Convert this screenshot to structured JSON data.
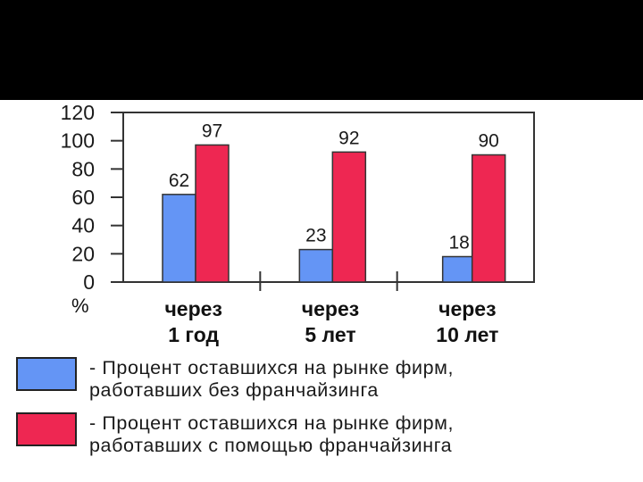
{
  "chart_data": {
    "type": "bar",
    "categories": [
      [
        "через",
        "1 год"
      ],
      [
        "через",
        "5 лет"
      ],
      [
        "через",
        "10 лет"
      ]
    ],
    "series": [
      {
        "color": "#6495f5",
        "values": [
          62,
          23,
          18
        ]
      },
      {
        "color": "#ee2752",
        "values": [
          97,
          92,
          90
        ]
      }
    ],
    "ylim": [
      0,
      120
    ],
    "yticks": [
      "120",
      "100",
      "80",
      "60",
      "40",
      "20",
      "0"
    ],
    "unit": "%",
    "grid": false,
    "data_labels": true
  },
  "legend": [
    {
      "color": "#6495f5",
      "lines": [
        "- Процент оставшихся на рынке фирм,",
        "работавших без франчайзинга"
      ]
    },
    {
      "color": "#ee2752",
      "lines": [
        "- Процент оставшихся на рынке фирм,",
        "работавших с помощью франчайзинга"
      ]
    }
  ]
}
